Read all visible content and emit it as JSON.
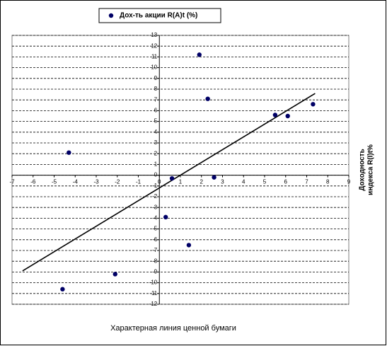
{
  "chart_data": {
    "type": "scatter",
    "legend": "top",
    "series": [
      {
        "name": "Дох-ть акции R(A)t (%)",
        "color": "#000066",
        "x": [
          -4.3,
          -4.6,
          -2.1,
          0.6,
          0.3,
          1.4,
          1.9,
          2.3,
          2.6,
          5.5,
          6.1,
          7.3
        ],
        "values": [
          2.1,
          -10.6,
          -9.2,
          -0.3,
          -3.9,
          -6.5,
          11.2,
          7.1,
          -0.2,
          5.6,
          5.5,
          6.6
        ]
      }
    ],
    "trendline": {
      "color": "#000000",
      "x": [
        -6.5,
        7.4
      ],
      "values": [
        -8.9,
        7.6
      ]
    },
    "xlabel": "Характерная линия ценной бумаги",
    "ylabel": [
      "Доходность",
      "индекса R(I)t%"
    ],
    "xlim": [
      -7,
      9
    ],
    "ylim": [
      -12,
      13
    ],
    "xticks": [
      -7,
      -6,
      -5,
      -4,
      -3,
      -2,
      -1,
      0,
      1,
      2,
      3,
      4,
      5,
      6,
      7,
      8,
      9
    ],
    "yticks": [
      -12,
      -11,
      -10,
      -9,
      -8,
      -7,
      -6,
      -5,
      -4,
      -3,
      -2,
      -1,
      0,
      1,
      2,
      3,
      4,
      5,
      6,
      7,
      8,
      9,
      10,
      11,
      12,
      13
    ],
    "grid": true
  }
}
